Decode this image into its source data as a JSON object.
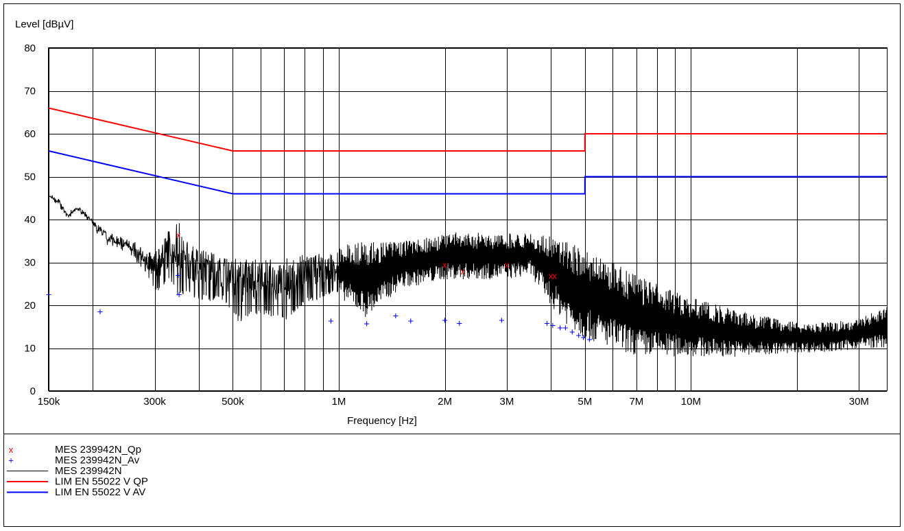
{
  "chart_data": {
    "type": "line",
    "ylabel": "Level [dBµV]",
    "xlabel": "Frequency [Hz]",
    "x_scale": "log",
    "xlim": [
      150000,
      36000000
    ],
    "ylim": [
      0,
      80
    ],
    "grid": true,
    "y_ticks": [
      0,
      10,
      20,
      30,
      40,
      50,
      60,
      70,
      80
    ],
    "x_tick_labels": [
      {
        "f": 150000,
        "label": "150k"
      },
      {
        "f": 300000,
        "label": "300k"
      },
      {
        "f": 500000,
        "label": "500k"
      },
      {
        "f": 1000000,
        "label": "1M"
      },
      {
        "f": 2000000,
        "label": "2M"
      },
      {
        "f": 3000000,
        "label": "3M"
      },
      {
        "f": 5000000,
        "label": "5M"
      },
      {
        "f": 7000000,
        "label": "7M"
      },
      {
        "f": 10000000,
        "label": "10M"
      },
      {
        "f": 30000000,
        "label": "30M"
      }
    ],
    "x_gridlines": [
      150000,
      200000,
      300000,
      400000,
      500000,
      600000,
      700000,
      800000,
      900000,
      1000000,
      2000000,
      3000000,
      4000000,
      5000000,
      6000000,
      7000000,
      8000000,
      9000000,
      10000000,
      20000000,
      30000000
    ],
    "series": [
      {
        "name": "LIM  EN 55022 V QP",
        "kind": "line",
        "color": "#ff0000",
        "points": [
          [
            150000,
            66
          ],
          [
            500000,
            56
          ],
          [
            5000000,
            56
          ],
          [
            5000000,
            60
          ],
          [
            36000000,
            60
          ]
        ]
      },
      {
        "name": "LIM  EN 55022 V AV",
        "kind": "line",
        "color": "#0000ff",
        "points": [
          [
            150000,
            56
          ],
          [
            500000,
            46
          ],
          [
            5000000,
            46
          ],
          [
            5000000,
            50
          ],
          [
            36000000,
            50
          ]
        ]
      },
      {
        "name": "MES  239942N",
        "kind": "trace",
        "color": "#000000",
        "envelope": [
          [
            150000,
            45.5,
            45.5
          ],
          [
            160000,
            45,
            43
          ],
          [
            170000,
            41,
            40
          ],
          [
            180000,
            43,
            42
          ],
          [
            190000,
            42,
            40.5
          ],
          [
            200000,
            40,
            38
          ],
          [
            220000,
            37,
            34
          ],
          [
            240000,
            36,
            33
          ],
          [
            260000,
            35,
            31
          ],
          [
            280000,
            33,
            27
          ],
          [
            300000,
            32,
            23
          ],
          [
            330000,
            38,
            25
          ],
          [
            350000,
            40,
            22
          ],
          [
            380000,
            34,
            22
          ],
          [
            420000,
            33,
            21
          ],
          [
            470000,
            31,
            21
          ],
          [
            520000,
            31,
            16
          ],
          [
            600000,
            31,
            18
          ],
          [
            700000,
            31,
            16
          ],
          [
            800000,
            32,
            20
          ],
          [
            900000,
            32,
            22
          ],
          [
            1000000,
            34,
            22
          ],
          [
            1200000,
            35,
            17
          ],
          [
            1500000,
            35,
            24
          ],
          [
            1800000,
            36,
            25
          ],
          [
            2000000,
            37,
            26
          ],
          [
            2500000,
            37,
            26
          ],
          [
            3000000,
            37,
            26
          ],
          [
            3500000,
            37,
            27
          ],
          [
            4000000,
            36,
            20
          ],
          [
            4500000,
            35,
            15
          ],
          [
            5000000,
            33,
            12
          ],
          [
            6000000,
            30,
            10
          ],
          [
            7000000,
            27,
            8
          ],
          [
            8000000,
            25,
            8
          ],
          [
            10000000,
            22,
            8
          ],
          [
            12000000,
            20,
            8
          ],
          [
            15000000,
            18,
            8
          ],
          [
            20000000,
            16,
            9
          ],
          [
            25000000,
            16,
            9
          ],
          [
            30000000,
            17,
            10
          ],
          [
            34000000,
            19,
            10
          ],
          [
            36000000,
            20,
            10
          ]
        ]
      },
      {
        "name": "MES  239942N_Qp",
        "kind": "markers",
        "marker": "x",
        "color": "#ff0000",
        "points": [
          [
            350000,
            36.5
          ],
          [
            2000000,
            29.5
          ],
          [
            2250000,
            28
          ],
          [
            3000000,
            29.5
          ],
          [
            4000000,
            27
          ],
          [
            4100000,
            27
          ]
        ]
      },
      {
        "name": "MES  239942N_Av",
        "kind": "markers",
        "marker": "+",
        "color": "#0000ff",
        "points": [
          [
            150000,
            22.5
          ],
          [
            210000,
            18.5
          ],
          [
            350000,
            27
          ],
          [
            352000,
            22.5
          ],
          [
            950000,
            16.3
          ],
          [
            1200000,
            15.7
          ],
          [
            1450000,
            17.5
          ],
          [
            1600000,
            16.3
          ],
          [
            2000000,
            16.5
          ],
          [
            2200000,
            15.8
          ],
          [
            2900000,
            16.5
          ],
          [
            3900000,
            15.8
          ],
          [
            4050000,
            15.3
          ],
          [
            4250000,
            14.7
          ],
          [
            4400000,
            14.7
          ],
          [
            4600000,
            13.8
          ],
          [
            4800000,
            13
          ],
          [
            4950000,
            12.5
          ],
          [
            5150000,
            12
          ]
        ]
      }
    ],
    "legend": [
      {
        "symbol": "x",
        "color": "#ff0000",
        "label": "MES  239942N_Qp"
      },
      {
        "symbol": "+",
        "color": "#0000ff",
        "label": "MES  239942N_Av"
      },
      {
        "symbol": "line",
        "color": "#000000",
        "label": "MES  239942N"
      },
      {
        "symbol": "line",
        "color": "#ff0000",
        "label": "LIM  EN 55022 V QP"
      },
      {
        "symbol": "line",
        "color": "#0000ff",
        "label": "LIM  EN 55022 V AV"
      }
    ]
  }
}
